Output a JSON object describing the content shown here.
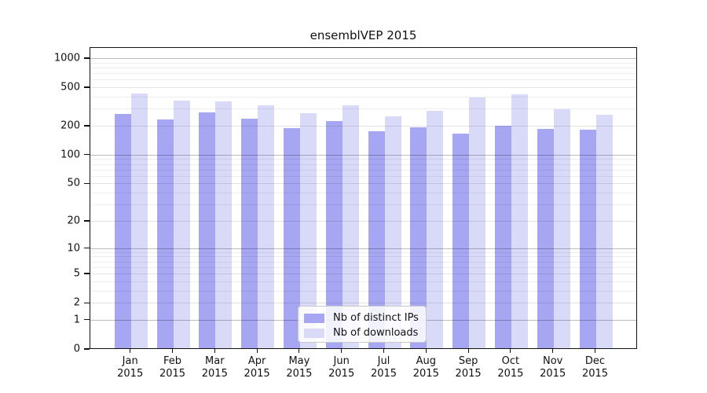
{
  "title": "ensemblVEP 2015",
  "chart_data": {
    "type": "bar",
    "title": "ensemblVEP 2015",
    "categories": [
      "Jan",
      "Feb",
      "Mar",
      "Apr",
      "May",
      "Jun",
      "Jul",
      "Aug",
      "Sep",
      "Oct",
      "Nov",
      "Dec"
    ],
    "category_year": "2015",
    "series": [
      {
        "name": "Nb of distinct IPs",
        "color": "#a6a6f2",
        "values": [
          270,
          238,
          278,
          240,
          194,
          229,
          180,
          197,
          168,
          204,
          190,
          185
        ]
      },
      {
        "name": "Nb of downloads",
        "color": "#d9d9f8",
        "values": [
          438,
          374,
          362,
          330,
          277,
          330,
          257,
          289,
          402,
          428,
          300,
          265
        ]
      }
    ],
    "xlabel": "",
    "ylabel": "",
    "yscale": "symlog (position proportional to log(1+value))",
    "yticks": [
      0,
      1,
      2,
      5,
      10,
      20,
      50,
      100,
      200,
      500,
      1000
    ],
    "ytick_labels": [
      "0",
      "1",
      "2",
      "5",
      "10",
      "20",
      "50",
      "100",
      "200",
      "500",
      "1000"
    ],
    "ylim": [
      0,
      1270
    ],
    "grid": "on",
    "legend_position": "lower center"
  },
  "legend": {
    "items": [
      {
        "label": "Nb of distinct IPs"
      },
      {
        "label": "Nb of downloads"
      }
    ]
  }
}
